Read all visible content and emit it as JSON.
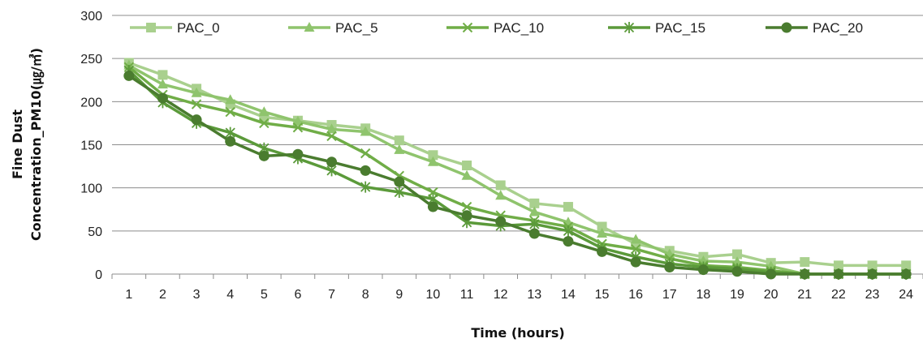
{
  "chart_data": {
    "type": "line",
    "title": "",
    "xlabel": "Time (hours)",
    "ylabel_line1": "Fine Dust",
    "ylabel_line2": "Concentration_PM10(㎍/㎥)",
    "x": [
      1,
      2,
      3,
      4,
      5,
      6,
      7,
      8,
      9,
      10,
      11,
      12,
      13,
      14,
      15,
      16,
      17,
      18,
      19,
      20,
      21,
      22,
      23,
      24
    ],
    "ylim": [
      0,
      300
    ],
    "yticks": [
      0,
      50,
      100,
      150,
      200,
      250,
      300
    ],
    "grid": "horizontal",
    "legend_position": "top",
    "series": [
      {
        "name": "PAC_0",
        "marker": "square",
        "color": "#a9d08e",
        "values": [
          245,
          231,
          215,
          197,
          182,
          178,
          173,
          169,
          155,
          138,
          126,
          103,
          82,
          78,
          55,
          35,
          27,
          20,
          23,
          13,
          14,
          10,
          10,
          10
        ]
      },
      {
        "name": "PAC_5",
        "marker": "triangle",
        "color": "#8fc46d",
        "values": [
          242,
          220,
          210,
          202,
          188,
          177,
          168,
          165,
          144,
          130,
          114,
          91,
          72,
          60,
          47,
          40,
          23,
          15,
          14,
          9,
          0,
          0,
          0,
          0
        ]
      },
      {
        "name": "PAC_10",
        "marker": "x",
        "color": "#70ad47",
        "values": [
          240,
          208,
          197,
          188,
          175,
          170,
          160,
          140,
          114,
          95,
          78,
          68,
          62,
          55,
          35,
          29,
          18,
          10,
          8,
          4,
          0,
          0,
          0,
          0
        ]
      },
      {
        "name": "PAC_15",
        "marker": "star",
        "color": "#5b9a3a",
        "values": [
          236,
          199,
          175,
          164,
          146,
          134,
          120,
          101,
          95,
          87,
          60,
          56,
          58,
          50,
          30,
          20,
          12,
          8,
          6,
          2,
          0,
          0,
          0,
          0
        ]
      },
      {
        "name": "PAC_20",
        "marker": "circle",
        "color": "#4a7c2f",
        "values": [
          230,
          204,
          179,
          154,
          137,
          139,
          130,
          120,
          107,
          78,
          68,
          61,
          47,
          38,
          26,
          14,
          8,
          5,
          3,
          0,
          0,
          0,
          0,
          0
        ]
      }
    ]
  }
}
